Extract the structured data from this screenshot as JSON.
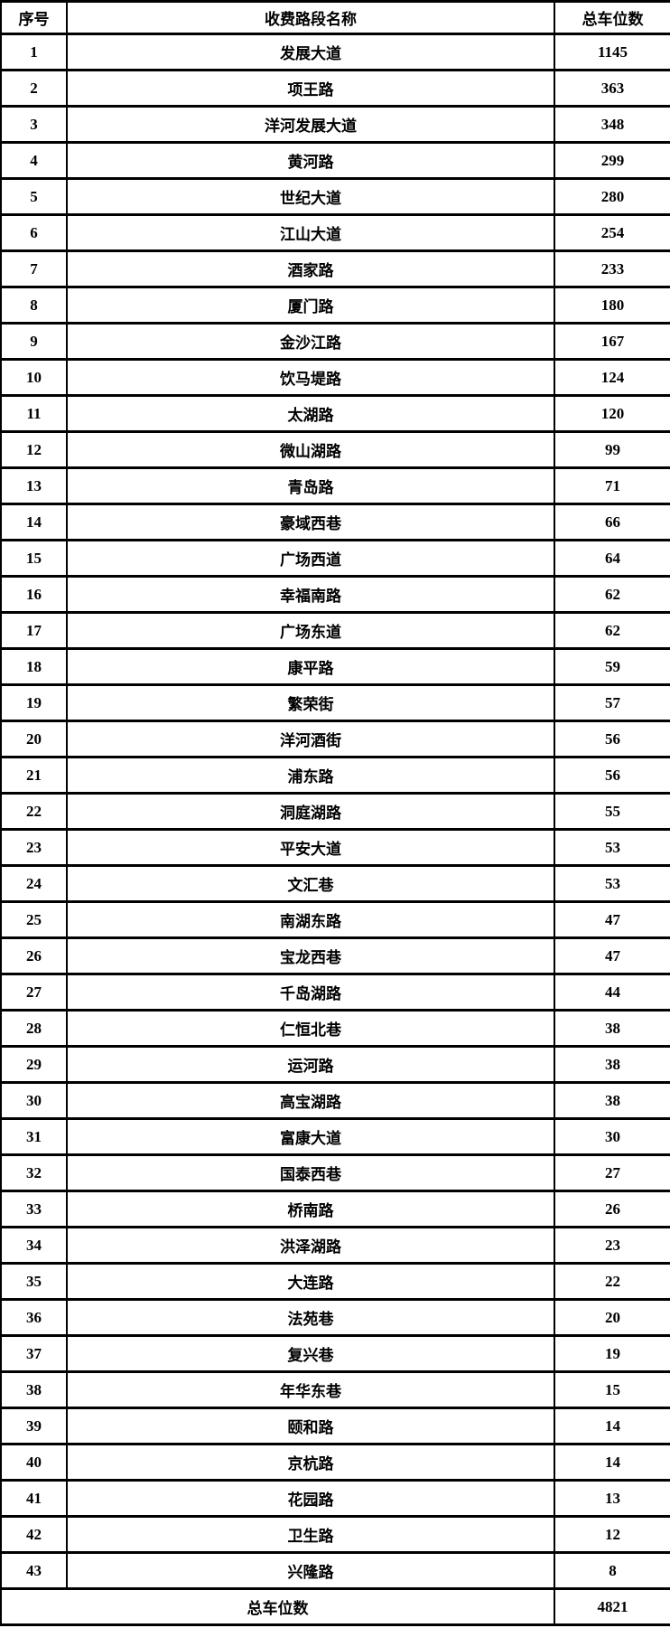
{
  "table": {
    "headers": {
      "no": "序号",
      "name": "收费路段名称",
      "count": "总车位数"
    },
    "rows": [
      {
        "no": "1",
        "name": "发展大道",
        "count": "1145"
      },
      {
        "no": "2",
        "name": "项王路",
        "count": "363"
      },
      {
        "no": "3",
        "name": "洋河发展大道",
        "count": "348"
      },
      {
        "no": "4",
        "name": "黄河路",
        "count": "299"
      },
      {
        "no": "5",
        "name": "世纪大道",
        "count": "280"
      },
      {
        "no": "6",
        "name": "江山大道",
        "count": "254"
      },
      {
        "no": "7",
        "name": "酒家路",
        "count": "233"
      },
      {
        "no": "8",
        "name": "厦门路",
        "count": "180"
      },
      {
        "no": "9",
        "name": "金沙江路",
        "count": "167"
      },
      {
        "no": "10",
        "name": "饮马堤路",
        "count": "124"
      },
      {
        "no": "11",
        "name": "太湖路",
        "count": "120"
      },
      {
        "no": "12",
        "name": "微山湖路",
        "count": "99"
      },
      {
        "no": "13",
        "name": "青岛路",
        "count": "71"
      },
      {
        "no": "14",
        "name": "豪域西巷",
        "count": "66"
      },
      {
        "no": "15",
        "name": "广场西道",
        "count": "64"
      },
      {
        "no": "16",
        "name": "幸福南路",
        "count": "62"
      },
      {
        "no": "17",
        "name": "广场东道",
        "count": "62"
      },
      {
        "no": "18",
        "name": "康平路",
        "count": "59"
      },
      {
        "no": "19",
        "name": "繁荣街",
        "count": "57"
      },
      {
        "no": "20",
        "name": "洋河酒街",
        "count": "56"
      },
      {
        "no": "21",
        "name": "浦东路",
        "count": "56"
      },
      {
        "no": "22",
        "name": "洞庭湖路",
        "count": "55"
      },
      {
        "no": "23",
        "name": "平安大道",
        "count": "53"
      },
      {
        "no": "24",
        "name": "文汇巷",
        "count": "53"
      },
      {
        "no": "25",
        "name": "南湖东路",
        "count": "47"
      },
      {
        "no": "26",
        "name": "宝龙西巷",
        "count": "47"
      },
      {
        "no": "27",
        "name": "千岛湖路",
        "count": "44"
      },
      {
        "no": "28",
        "name": "仁恒北巷",
        "count": "38"
      },
      {
        "no": "29",
        "name": "运河路",
        "count": "38"
      },
      {
        "no": "30",
        "name": "高宝湖路",
        "count": "38"
      },
      {
        "no": "31",
        "name": "富康大道",
        "count": "30"
      },
      {
        "no": "32",
        "name": "国泰西巷",
        "count": "27"
      },
      {
        "no": "33",
        "name": "桥南路",
        "count": "26"
      },
      {
        "no": "34",
        "name": "洪泽湖路",
        "count": "23"
      },
      {
        "no": "35",
        "name": "大连路",
        "count": "22"
      },
      {
        "no": "36",
        "name": "法苑巷",
        "count": "20"
      },
      {
        "no": "37",
        "name": "复兴巷",
        "count": "19"
      },
      {
        "no": "38",
        "name": "年华东巷",
        "count": "15"
      },
      {
        "no": "39",
        "name": "颐和路",
        "count": "14"
      },
      {
        "no": "40",
        "name": "京杭路",
        "count": "14"
      },
      {
        "no": "41",
        "name": "花园路",
        "count": "13"
      },
      {
        "no": "42",
        "name": "卫生路",
        "count": "12"
      },
      {
        "no": "43",
        "name": "兴隆路",
        "count": "8"
      }
    ],
    "footer": {
      "label": "总车位数",
      "total": "4821"
    }
  }
}
